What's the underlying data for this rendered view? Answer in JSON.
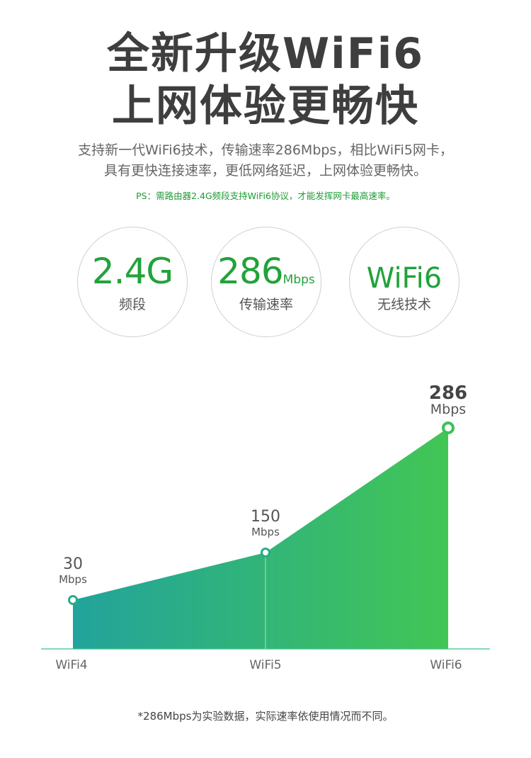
{
  "header": {
    "title_line1": "全新升级WiFi6",
    "title_line2": "上网体验更畅快",
    "desc_line1": "支持新一代WiFi6技术，传输速率286Mbps，相比WiFi5网卡，",
    "desc_line2": "具有更快连接速率，更低网络延迟，上网体验更畅快。",
    "ps": "PS：需路由器2.4G频段支持WiFi6协议，才能发挥网卡最高速率。"
  },
  "features": [
    {
      "value": "2.4G",
      "unit": "",
      "label": "频段"
    },
    {
      "value": "286",
      "unit": "Mbps",
      "label": "传输速率"
    },
    {
      "value": "WiFi6",
      "unit": "",
      "label": "无线技术"
    }
  ],
  "colors": {
    "accent": "#22a23a",
    "gradient_start": "#22a39c",
    "gradient_end": "#42c654"
  },
  "chart_data": {
    "type": "area",
    "categories": [
      "WiFi4",
      "WiFi5",
      "WiFi6"
    ],
    "values": [
      30,
      150,
      286
    ],
    "data_labels": [
      {
        "value": "30",
        "unit": "Mbps"
      },
      {
        "value": "150",
        "unit": "Mbps"
      },
      {
        "value": "286",
        "unit": "Mbps"
      }
    ],
    "title": "",
    "xlabel": "",
    "ylabel": "",
    "grid": false,
    "legend": "none"
  },
  "footnote": "*286Mbps为实验数据，实际速率依使用情况而不同。"
}
